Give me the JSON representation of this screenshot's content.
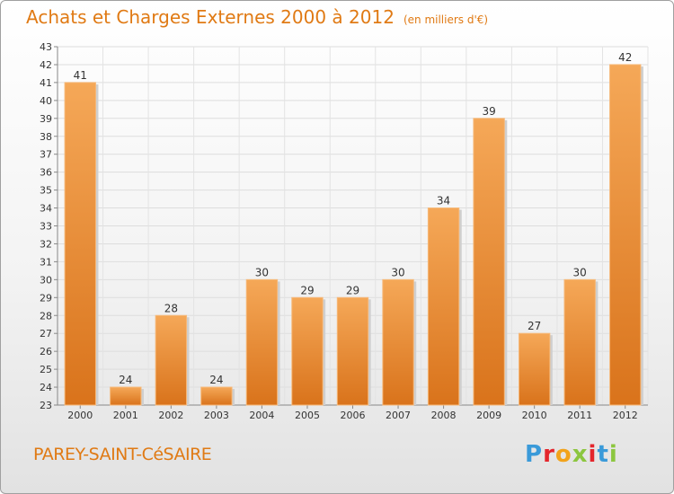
{
  "header": {
    "title": "Achats et Charges Externes 2000 à 2012",
    "unit": "(en milliers d'€)"
  },
  "footer": {
    "commune": "PAREY-SAINT-CéSAIRE",
    "logo": "Proxiti"
  },
  "colors": {
    "accent": "#e07a14",
    "bar_light": "#f5a858",
    "bar_dark": "#d9731b",
    "logo_letters": [
      "#3a9ad9",
      "#e4262c",
      "#f2a31b",
      "#8cc63f",
      "#e4262c",
      "#3a9ad9",
      "#8cc63f"
    ]
  },
  "chart_data": {
    "type": "bar",
    "title": "Achats et Charges Externes 2000 à 2012",
    "subtitle": "(en milliers d'€)",
    "categories": [
      "2000",
      "2001",
      "2002",
      "2003",
      "2004",
      "2005",
      "2006",
      "2007",
      "2008",
      "2009",
      "2010",
      "2011",
      "2012"
    ],
    "values": [
      41,
      24,
      28,
      24,
      30,
      29,
      29,
      30,
      34,
      39,
      27,
      30,
      42
    ],
    "ylim": [
      23,
      43
    ],
    "yticks": [
      23,
      24,
      25,
      26,
      27,
      28,
      29,
      30,
      31,
      32,
      33,
      34,
      35,
      36,
      37,
      38,
      39,
      40,
      41,
      42,
      43
    ],
    "grid": true,
    "data_labels": true
  }
}
